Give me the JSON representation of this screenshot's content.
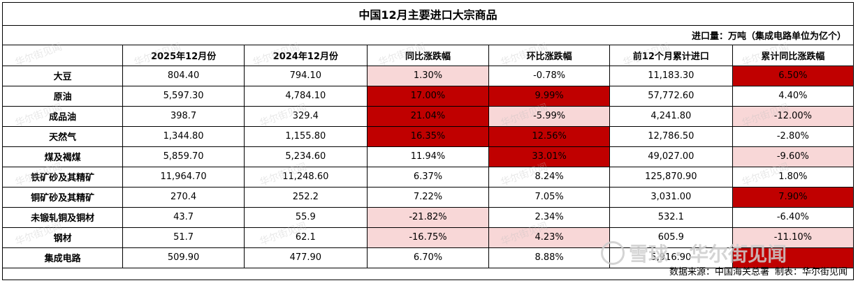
{
  "title": "中国12月主要进口大宗商品",
  "unit_note": "进口量：万吨（集成电路单位为亿个）",
  "columns": [
    "",
    "2025年12月份",
    "2024年12月份",
    "同比涨跌幅",
    "环比涨跌幅",
    "前12个月累计进口",
    "累计同比涨跌幅"
  ],
  "rows": [
    [
      "大豆",
      "804.40",
      "794.10",
      "1.30%",
      "-0.78%",
      "11,183.30",
      "6.50%"
    ],
    [
      "原油",
      "5,597.30",
      "4,784.10",
      "17.00%",
      "9.99%",
      "57,772.60",
      "4.40%"
    ],
    [
      "成品油",
      "398.7",
      "329.4",
      "21.04%",
      "-5.99%",
      "4,241.80",
      "-12.00%"
    ],
    [
      "天然气",
      "1,344.80",
      "1,155.80",
      "16.35%",
      "12.56%",
      "12,786.50",
      "-2.80%"
    ],
    [
      "煤及褐煤",
      "5,859.70",
      "5,234.60",
      "11.94%",
      "33.01%",
      "49,027.00",
      "-9.60%"
    ],
    [
      "铁矿砂及其精矿",
      "11,964.70",
      "11,248.60",
      "6.37%",
      "8.24%",
      "125,870.90",
      "1.80%"
    ],
    [
      "铜矿砂及其精矿",
      "270.4",
      "252.2",
      "7.22%",
      "7.05%",
      "3,031.00",
      "7.90%"
    ],
    [
      "未锻轧铜及铜材",
      "43.7",
      "55.9",
      "-21.82%",
      "2.34%",
      "532.1",
      "-6.40%"
    ],
    [
      "钢材",
      "51.7",
      "62.1",
      "-16.75%",
      "4.23%",
      "605.9",
      "-11.10%"
    ],
    [
      "集成电路",
      "509.90",
      "477.90",
      "6.70%",
      "8.88%",
      "5,916.90",
      ""
    ]
  ],
  "cell_colors": {
    "dark": "#c00000",
    "light": "#f8d7d7",
    "highlights": [
      {
        "row": 0,
        "col": 3,
        "level": "light"
      },
      {
        "row": 0,
        "col": 6,
        "level": "dark"
      },
      {
        "row": 1,
        "col": 3,
        "level": "dark"
      },
      {
        "row": 1,
        "col": 4,
        "level": "dark"
      },
      {
        "row": 2,
        "col": 3,
        "level": "dark"
      },
      {
        "row": 2,
        "col": 4,
        "level": "light"
      },
      {
        "row": 2,
        "col": 6,
        "level": "light"
      },
      {
        "row": 3,
        "col": 3,
        "level": "dark"
      },
      {
        "row": 3,
        "col": 4,
        "level": "dark"
      },
      {
        "row": 4,
        "col": 4,
        "level": "dark"
      },
      {
        "row": 4,
        "col": 6,
        "level": "light"
      },
      {
        "row": 6,
        "col": 6,
        "level": "dark"
      },
      {
        "row": 7,
        "col": 3,
        "level": "light"
      },
      {
        "row": 8,
        "col": 3,
        "level": "light"
      },
      {
        "row": 8,
        "col": 4,
        "level": "light"
      },
      {
        "row": 8,
        "col": 6,
        "level": "light"
      },
      {
        "row": 9,
        "col": 6,
        "level": "dark"
      }
    ]
  },
  "footer": {
    "source": "数据来源：中国海关总署",
    "maker": "制表：华尔街见闻"
  },
  "watermark": {
    "text": "华尔街见闻",
    "overlay": "雪球 · 华尔街见闻"
  }
}
